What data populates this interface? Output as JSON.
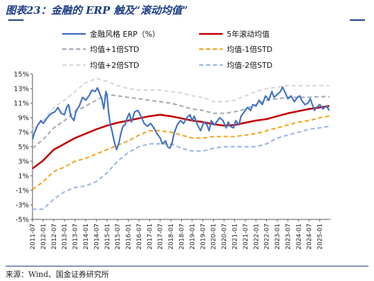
{
  "title": "图表23：金融的 ERP 触及“滚动均值”",
  "source": "来源：Wind、国金证券研究所",
  "colors": {
    "erp": "#4472c4",
    "rolling": "#c00000",
    "plus1": "#a6aeb8",
    "minus1": "#f5a623",
    "plus2": "#d9d9d9",
    "minus2": "#9db8e3"
  },
  "chart_data": {
    "type": "line",
    "ylim": [
      -5,
      15
    ],
    "yticks": [
      "15%",
      "13%",
      "11%",
      "9%",
      "7%",
      "5%",
      "3%",
      "1%",
      "-1%",
      "-3%",
      "-5%"
    ],
    "xticks": [
      "2011-07",
      "2012-01",
      "2012-07",
      "2013-01",
      "2013-07",
      "2014-01",
      "2014-07",
      "2015-01",
      "2015-07",
      "2016-01",
      "2016-07",
      "2017-01",
      "2017-07",
      "2018-01",
      "2018-07",
      "2019-01",
      "2019-07",
      "2020-01",
      "2020-07",
      "2021-01",
      "2021-07",
      "2022-01",
      "2022-07",
      "2023-01",
      "2023-07",
      "2024-01",
      "2024-07",
      "2025-01"
    ],
    "x_start": 2011.5,
    "x_end": 2025.5,
    "series": [
      {
        "name": "金融风格 ERP（%）",
        "key": "erp",
        "style": "solid-thick",
        "points": [
          [
            2011.5,
            6.0
          ],
          [
            2011.6,
            7.0
          ],
          [
            2011.75,
            8.0
          ],
          [
            2011.9,
            8.6
          ],
          [
            2012.0,
            8.2
          ],
          [
            2012.1,
            8.6
          ],
          [
            2012.25,
            9.2
          ],
          [
            2012.4,
            9.6
          ],
          [
            2012.55,
            9.8
          ],
          [
            2012.7,
            10.4
          ],
          [
            2012.85,
            9.6
          ],
          [
            2013.0,
            9.4
          ],
          [
            2013.1,
            10.4
          ],
          [
            2013.2,
            10.8
          ],
          [
            2013.3,
            9.2
          ],
          [
            2013.45,
            8.6
          ],
          [
            2013.55,
            10.0
          ],
          [
            2013.7,
            10.6
          ],
          [
            2013.85,
            11.8
          ],
          [
            2014.0,
            11.4
          ],
          [
            2014.15,
            12.0
          ],
          [
            2014.3,
            12.8
          ],
          [
            2014.45,
            12.6
          ],
          [
            2014.55,
            13.1
          ],
          [
            2014.65,
            12.4
          ],
          [
            2014.75,
            11.6
          ],
          [
            2014.85,
            10.2
          ],
          [
            2014.95,
            12.6
          ],
          [
            2015.0,
            12.0
          ],
          [
            2015.08,
            9.6
          ],
          [
            2015.15,
            8.2
          ],
          [
            2015.25,
            7.0
          ],
          [
            2015.35,
            5.6
          ],
          [
            2015.45,
            4.6
          ],
          [
            2015.55,
            5.4
          ],
          [
            2015.65,
            6.8
          ],
          [
            2015.75,
            7.8
          ],
          [
            2015.85,
            8.0
          ],
          [
            2015.95,
            9.0
          ],
          [
            2016.05,
            9.6
          ],
          [
            2016.15,
            8.4
          ],
          [
            2016.3,
            9.8
          ],
          [
            2016.45,
            10.0
          ],
          [
            2016.6,
            9.2
          ],
          [
            2016.75,
            8.2
          ],
          [
            2016.9,
            7.8
          ],
          [
            2017.05,
            8.2
          ],
          [
            2017.2,
            7.6
          ],
          [
            2017.35,
            6.8
          ],
          [
            2017.5,
            6.2
          ],
          [
            2017.6,
            5.4
          ],
          [
            2017.75,
            5.8
          ],
          [
            2017.85,
            5.0
          ],
          [
            2017.95,
            4.8
          ],
          [
            2018.05,
            5.4
          ],
          [
            2018.15,
            6.8
          ],
          [
            2018.3,
            8.0
          ],
          [
            2018.45,
            8.6
          ],
          [
            2018.6,
            8.2
          ],
          [
            2018.75,
            9.0
          ],
          [
            2018.9,
            9.4
          ],
          [
            2019.0,
            8.6
          ],
          [
            2019.1,
            9.2
          ],
          [
            2019.25,
            8.0
          ],
          [
            2019.4,
            7.2
          ],
          [
            2019.55,
            8.4
          ],
          [
            2019.7,
            8.0
          ],
          [
            2019.8,
            7.2
          ],
          [
            2019.9,
            8.6
          ],
          [
            2020.05,
            8.0
          ],
          [
            2020.15,
            8.4
          ],
          [
            2020.3,
            9.0
          ],
          [
            2020.45,
            8.6
          ],
          [
            2020.6,
            7.6
          ],
          [
            2020.7,
            8.4
          ],
          [
            2020.8,
            7.8
          ],
          [
            2020.95,
            7.6
          ],
          [
            2021.05,
            8.6
          ],
          [
            2021.2,
            8.0
          ],
          [
            2021.3,
            9.2
          ],
          [
            2021.45,
            9.8
          ],
          [
            2021.6,
            10.4
          ],
          [
            2021.75,
            10.0
          ],
          [
            2021.85,
            10.8
          ],
          [
            2022.0,
            10.6
          ],
          [
            2022.15,
            11.4
          ],
          [
            2022.3,
            10.8
          ],
          [
            2022.45,
            12.0
          ],
          [
            2022.6,
            11.4
          ],
          [
            2022.75,
            12.6
          ],
          [
            2022.85,
            11.8
          ],
          [
            2023.0,
            12.2
          ],
          [
            2023.15,
            12.6
          ],
          [
            2023.25,
            13.2
          ],
          [
            2023.35,
            12.6
          ],
          [
            2023.5,
            11.6
          ],
          [
            2023.65,
            12.0
          ],
          [
            2023.8,
            11.2
          ],
          [
            2023.95,
            11.8
          ],
          [
            2024.05,
            12.0
          ],
          [
            2024.15,
            11.4
          ],
          [
            2024.3,
            10.8
          ],
          [
            2024.45,
            11.0
          ],
          [
            2024.55,
            11.6
          ],
          [
            2024.65,
            10.8
          ],
          [
            2024.75,
            10.0
          ],
          [
            2024.85,
            10.4
          ],
          [
            2025.0,
            10.8
          ],
          [
            2025.15,
            10.2
          ],
          [
            2025.3,
            10.6
          ],
          [
            2025.45,
            10.0
          ]
        ]
      },
      {
        "name": "5年滚动均值",
        "key": "rolling",
        "style": "solid-thick",
        "points": [
          [
            2011.5,
            2.0
          ],
          [
            2012.0,
            3.1
          ],
          [
            2012.5,
            4.6
          ],
          [
            2013.0,
            5.4
          ],
          [
            2013.5,
            6.2
          ],
          [
            2014.0,
            6.8
          ],
          [
            2014.5,
            7.4
          ],
          [
            2015.0,
            7.9
          ],
          [
            2015.5,
            8.3
          ],
          [
            2016.0,
            8.6
          ],
          [
            2016.5,
            8.9
          ],
          [
            2017.0,
            9.2
          ],
          [
            2017.5,
            9.4
          ],
          [
            2018.0,
            9.2
          ],
          [
            2018.5,
            8.9
          ],
          [
            2019.0,
            8.6
          ],
          [
            2019.5,
            8.4
          ],
          [
            2020.0,
            8.1
          ],
          [
            2020.5,
            7.9
          ],
          [
            2021.0,
            8.0
          ],
          [
            2021.5,
            8.3
          ],
          [
            2022.0,
            8.6
          ],
          [
            2022.5,
            8.8
          ],
          [
            2023.0,
            9.2
          ],
          [
            2023.5,
            9.6
          ],
          [
            2024.0,
            9.9
          ],
          [
            2024.5,
            10.2
          ],
          [
            2025.0,
            10.4
          ],
          [
            2025.45,
            10.6
          ]
        ]
      },
      {
        "name": "均值+1倍STD",
        "key": "plus1",
        "style": "dashed",
        "points": [
          [
            2011.5,
            4.8
          ],
          [
            2012.0,
            6.0
          ],
          [
            2012.5,
            7.6
          ],
          [
            2013.0,
            8.6
          ],
          [
            2013.5,
            9.8
          ],
          [
            2014.0,
            10.6
          ],
          [
            2014.5,
            11.4
          ],
          [
            2015.0,
            12.2
          ],
          [
            2015.5,
            12.0
          ],
          [
            2016.0,
            11.8
          ],
          [
            2016.5,
            11.6
          ],
          [
            2017.0,
            11.4
          ],
          [
            2017.5,
            11.2
          ],
          [
            2018.0,
            11.0
          ],
          [
            2018.5,
            10.6
          ],
          [
            2019.0,
            10.2
          ],
          [
            2019.5,
            10.0
          ],
          [
            2020.0,
            9.6
          ],
          [
            2020.5,
            9.6
          ],
          [
            2021.0,
            9.8
          ],
          [
            2021.5,
            10.2
          ],
          [
            2022.0,
            10.8
          ],
          [
            2022.5,
            11.4
          ],
          [
            2023.0,
            11.6
          ],
          [
            2023.5,
            11.8
          ],
          [
            2024.0,
            11.8
          ],
          [
            2024.5,
            11.8
          ],
          [
            2025.0,
            11.9
          ],
          [
            2025.45,
            11.9
          ]
        ]
      },
      {
        "name": "均值-1倍STD",
        "key": "minus1",
        "style": "dashed",
        "points": [
          [
            2011.5,
            -0.9
          ],
          [
            2012.0,
            0.2
          ],
          [
            2012.5,
            1.6
          ],
          [
            2013.0,
            2.2
          ],
          [
            2013.5,
            3.0
          ],
          [
            2014.0,
            3.4
          ],
          [
            2014.5,
            4.0
          ],
          [
            2015.0,
            4.6
          ],
          [
            2015.5,
            5.2
          ],
          [
            2016.0,
            5.8
          ],
          [
            2016.5,
            6.6
          ],
          [
            2017.0,
            7.2
          ],
          [
            2017.5,
            7.2
          ],
          [
            2018.0,
            7.0
          ],
          [
            2018.5,
            6.6
          ],
          [
            2019.0,
            6.2
          ],
          [
            2019.5,
            6.2
          ],
          [
            2020.0,
            6.4
          ],
          [
            2020.5,
            6.4
          ],
          [
            2021.0,
            6.4
          ],
          [
            2021.5,
            6.6
          ],
          [
            2022.0,
            6.8
          ],
          [
            2022.5,
            7.2
          ],
          [
            2023.0,
            7.6
          ],
          [
            2023.5,
            8.0
          ],
          [
            2024.0,
            8.4
          ],
          [
            2024.5,
            8.6
          ],
          [
            2025.0,
            9.0
          ],
          [
            2025.45,
            9.2
          ]
        ]
      },
      {
        "name": "均值+2倍STD",
        "key": "plus2",
        "style": "dashed",
        "points": [
          [
            2011.5,
            7.4
          ],
          [
            2012.0,
            8.6
          ],
          [
            2012.5,
            10.4
          ],
          [
            2013.0,
            11.4
          ],
          [
            2013.5,
            12.6
          ],
          [
            2014.0,
            13.8
          ],
          [
            2014.5,
            14.4
          ],
          [
            2015.0,
            14.0
          ],
          [
            2015.5,
            13.4
          ],
          [
            2016.0,
            13.0
          ],
          [
            2016.5,
            12.8
          ],
          [
            2017.0,
            12.8
          ],
          [
            2017.5,
            12.8
          ],
          [
            2018.0,
            12.6
          ],
          [
            2018.5,
            12.4
          ],
          [
            2019.0,
            12.0
          ],
          [
            2019.5,
            11.8
          ],
          [
            2020.0,
            11.2
          ],
          [
            2020.5,
            11.2
          ],
          [
            2021.0,
            11.4
          ],
          [
            2021.5,
            12.0
          ],
          [
            2022.0,
            12.6
          ],
          [
            2022.5,
            13.0
          ],
          [
            2023.0,
            13.2
          ],
          [
            2023.5,
            13.4
          ],
          [
            2024.0,
            13.4
          ],
          [
            2024.5,
            13.4
          ],
          [
            2025.0,
            13.4
          ],
          [
            2025.45,
            13.4
          ]
        ]
      },
      {
        "name": "均值-2倍STD",
        "key": "minus2",
        "style": "dashed",
        "points": [
          [
            2011.5,
            -3.6
          ],
          [
            2012.0,
            -3.6
          ],
          [
            2012.5,
            -2.2
          ],
          [
            2013.0,
            -1.2
          ],
          [
            2013.5,
            -0.6
          ],
          [
            2014.0,
            -0.4
          ],
          [
            2014.5,
            0.2
          ],
          [
            2015.0,
            1.4
          ],
          [
            2015.5,
            3.0
          ],
          [
            2016.0,
            4.2
          ],
          [
            2016.5,
            5.0
          ],
          [
            2017.0,
            5.4
          ],
          [
            2017.5,
            5.4
          ],
          [
            2018.0,
            5.4
          ],
          [
            2018.5,
            4.8
          ],
          [
            2019.0,
            4.4
          ],
          [
            2019.5,
            4.4
          ],
          [
            2020.0,
            4.8
          ],
          [
            2020.5,
            5.0
          ],
          [
            2021.0,
            5.0
          ],
          [
            2021.5,
            5.0
          ],
          [
            2022.0,
            5.0
          ],
          [
            2022.5,
            5.4
          ],
          [
            2023.0,
            6.2
          ],
          [
            2023.5,
            6.6
          ],
          [
            2024.0,
            7.0
          ],
          [
            2024.5,
            7.4
          ],
          [
            2025.0,
            7.6
          ],
          [
            2025.45,
            7.8
          ]
        ]
      }
    ],
    "legend": [
      {
        "key": "erp",
        "label": "金融风格 ERP（%）"
      },
      {
        "key": "rolling",
        "label": "5年滚动均值"
      },
      {
        "key": "plus1",
        "label": "均值+1倍STD"
      },
      {
        "key": "minus1",
        "label": "均值-1倍STD"
      },
      {
        "key": "plus2",
        "label": "均值+2倍STD"
      },
      {
        "key": "minus2",
        "label": "均值-2倍STD"
      }
    ]
  }
}
